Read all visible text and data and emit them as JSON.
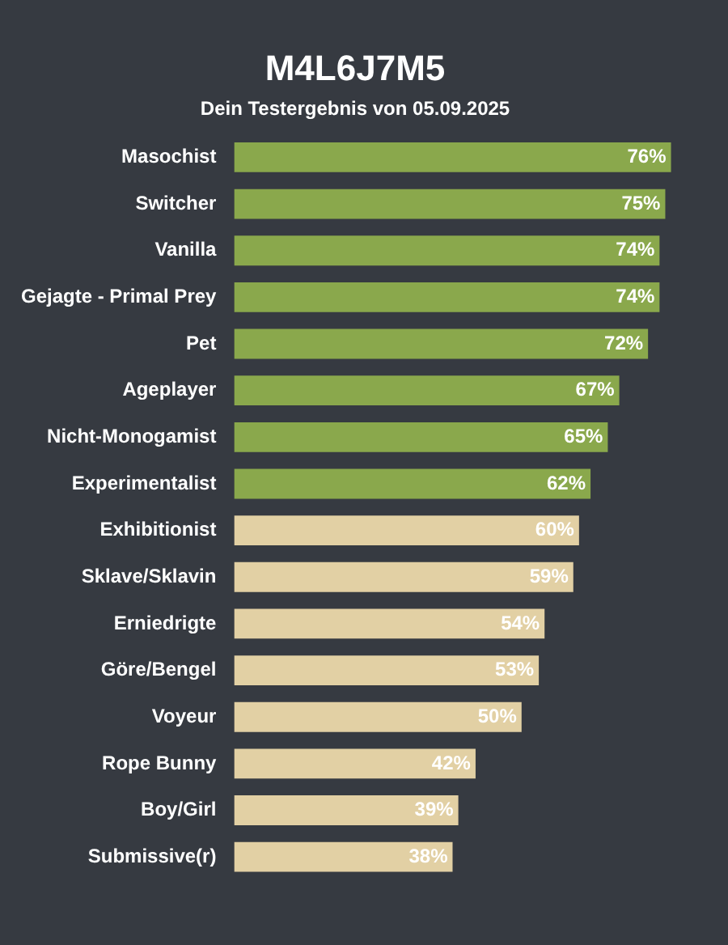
{
  "chart_data": {
    "type": "bar",
    "orientation": "horizontal",
    "title": "M4L6J7M5",
    "subtitle": "Dein Testergebnis von 05.09.2025",
    "categories": [
      "Masochist",
      "Switcher",
      "Vanilla",
      "Gejagte - Primal Prey",
      "Pet",
      "Ageplayer",
      "Nicht-Monogamist",
      "Experimentalist",
      "Exhibitionist",
      "Sklave/Sklavin",
      "Erniedrigte",
      "Göre/Bengel",
      "Voyeur",
      "Rope Bunny",
      "Boy/Girl",
      "Submissive(r)"
    ],
    "values": [
      76,
      75,
      74,
      74,
      72,
      67,
      65,
      62,
      60,
      59,
      54,
      53,
      50,
      42,
      39,
      38
    ],
    "value_labels": [
      "76%",
      "75%",
      "74%",
      "74%",
      "72%",
      "67%",
      "65%",
      "62%",
      "60%",
      "59%",
      "54%",
      "53%",
      "50%",
      "42%",
      "39%",
      "38%"
    ],
    "colors": [
      "#8aa84c",
      "#8aa84c",
      "#8aa84c",
      "#8aa84c",
      "#8aa84c",
      "#8aa84c",
      "#8aa84c",
      "#8aa84c",
      "#e2d0a4",
      "#e2d0a4",
      "#e2d0a4",
      "#e2d0a4",
      "#e2d0a4",
      "#e2d0a4",
      "#e2d0a4",
      "#e2d0a4"
    ],
    "tick_labels": "y"
  }
}
